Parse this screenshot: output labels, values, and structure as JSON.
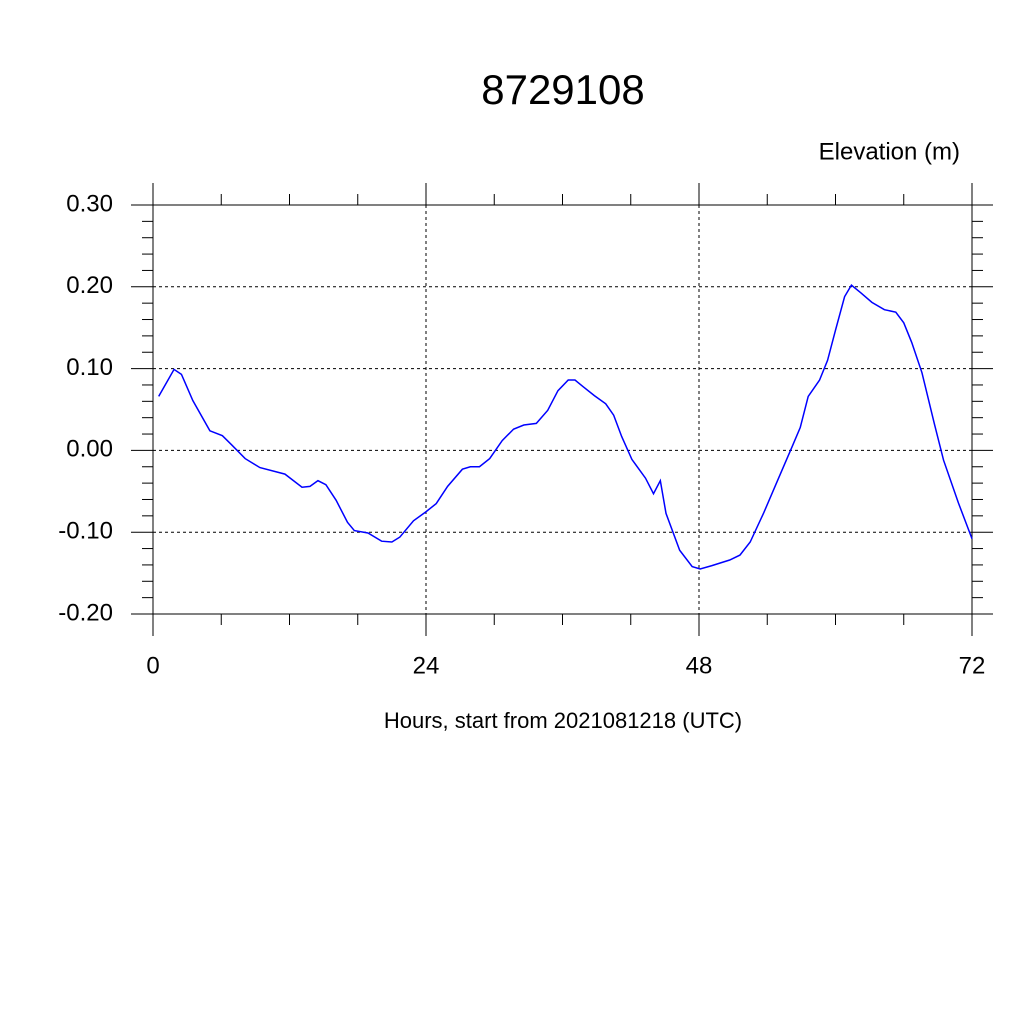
{
  "chart_data": {
    "type": "line",
    "title": "8729108",
    "ylabel": "Elevation (m)",
    "xlabel": "Hours, start from 2021081218 (UTC)",
    "color": "#0000ff",
    "grid": true,
    "xlim": [
      0,
      72
    ],
    "xticks": [
      0,
      24,
      48,
      72
    ],
    "xminorticks": [
      6,
      12,
      18,
      30,
      36,
      42,
      54,
      60,
      66
    ],
    "ylim": [
      -0.2,
      0.3
    ],
    "yticks": [
      {
        "value": -0.2,
        "label": "-0.20"
      },
      {
        "value": -0.1,
        "label": "-0.10"
      },
      {
        "value": 0,
        "label": "0.00"
      },
      {
        "value": 0.1,
        "label": "0.10"
      },
      {
        "value": 0.2,
        "label": "0.20"
      },
      {
        "value": 0.3,
        "label": "0.30"
      }
    ],
    "yminorticks": [
      -0.18,
      -0.16,
      -0.14,
      -0.12,
      -0.08,
      -0.06,
      -0.04,
      -0.02,
      0.02,
      0.04,
      0.06,
      0.08,
      0.12,
      0.14,
      0.16,
      0.18,
      0.22,
      0.24,
      0.26,
      0.28
    ],
    "x": [
      0.5,
      1.85,
      2.5,
      3.5,
      5.0,
      6.1,
      6.9,
      8.1,
      9.4,
      11.6,
      13.1,
      13.8,
      14.5,
      15.2,
      16.1,
      17.1,
      17.7,
      18.9,
      20.1,
      21.0,
      21.7,
      22.9,
      24.0,
      24.9,
      25.9,
      27.2,
      27.9,
      28.7,
      29.6,
      30.7,
      31.7,
      32.6,
      33.7,
      34.7,
      35.6,
      36.5,
      37.1,
      37.8,
      38.8,
      39.8,
      40.5,
      41.2,
      42.1,
      43.3,
      44.0,
      44.6,
      45.1,
      46.3,
      47.4,
      48.1,
      49.1,
      50.7,
      51.6,
      52.5,
      53.7,
      54.9,
      56.2,
      56.9,
      57.6,
      58.6,
      59.3,
      60.0,
      60.8,
      61.4,
      62.2,
      63.2,
      64.3,
      65.3,
      66.0,
      66.7,
      67.6,
      68.7,
      69.5,
      70.8,
      72.0
    ],
    "values": [
      0.066,
      0.099,
      0.093,
      0.061,
      0.024,
      0.018,
      0.007,
      -0.01,
      -0.021,
      -0.029,
      -0.045,
      -0.044,
      -0.037,
      -0.042,
      -0.061,
      -0.088,
      -0.098,
      -0.101,
      -0.111,
      -0.112,
      -0.106,
      -0.086,
      -0.075,
      -0.065,
      -0.044,
      -0.023,
      -0.02,
      -0.02,
      -0.01,
      0.012,
      0.026,
      0.031,
      0.033,
      0.049,
      0.073,
      0.086,
      0.086,
      0.078,
      0.067,
      0.057,
      0.043,
      0.017,
      -0.011,
      -0.034,
      -0.053,
      -0.037,
      -0.077,
      -0.122,
      -0.142,
      -0.145,
      -0.141,
      -0.134,
      -0.128,
      -0.112,
      -0.076,
      -0.037,
      0.005,
      0.028,
      0.066,
      0.086,
      0.11,
      0.147,
      0.188,
      0.202,
      0.193,
      0.181,
      0.172,
      0.169,
      0.156,
      0.132,
      0.095,
      0.032,
      -0.012,
      -0.064,
      -0.108
    ]
  }
}
